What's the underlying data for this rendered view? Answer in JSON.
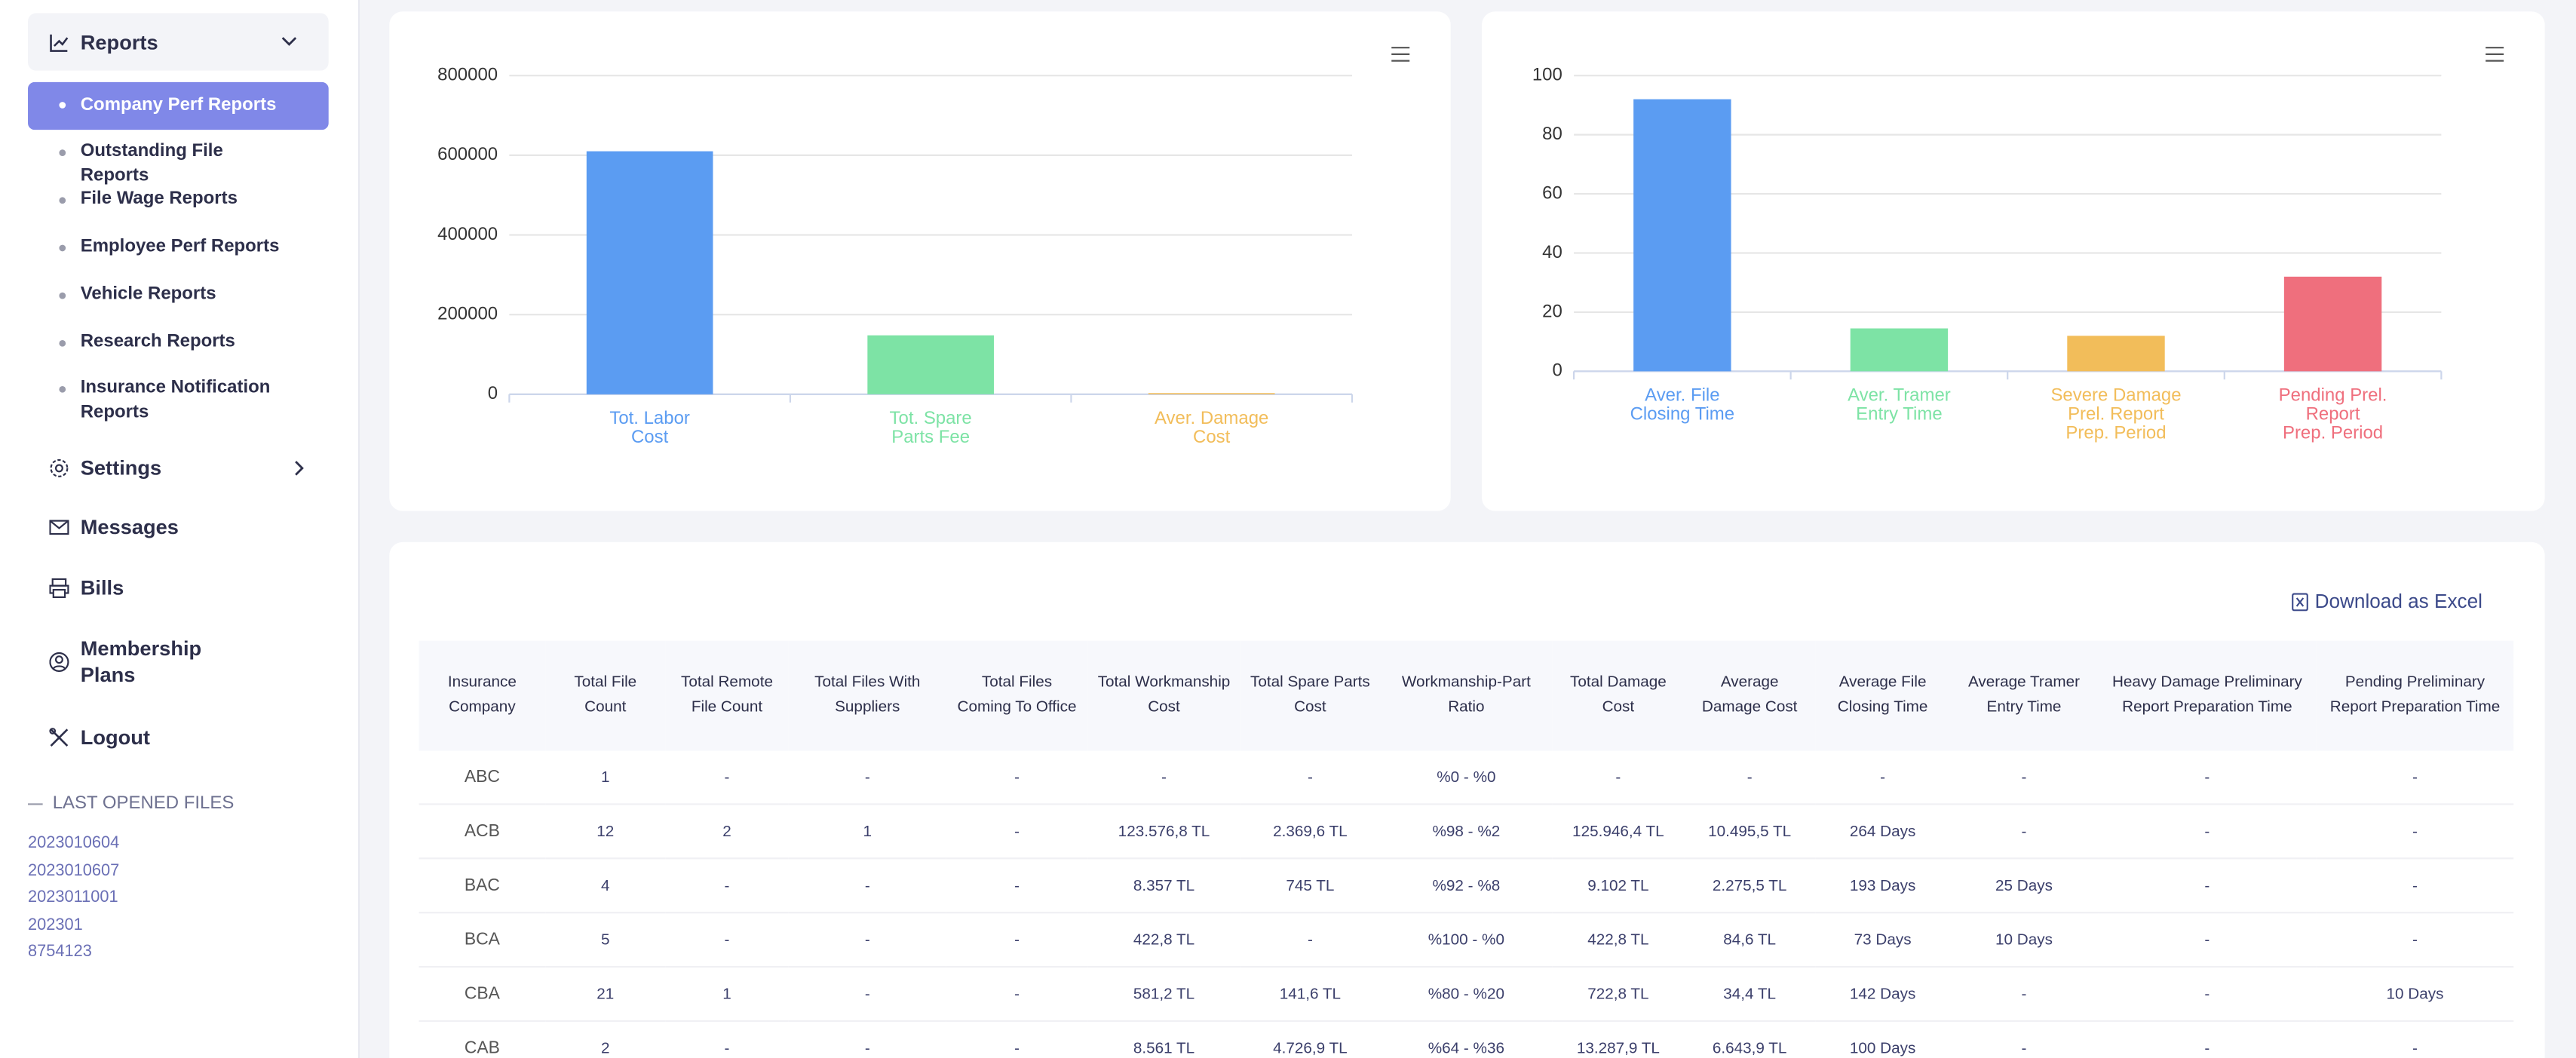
{
  "sidebar": {
    "menu": {
      "label": "Reports",
      "items": [
        "Company Perf Reports",
        "Outstanding File Reports",
        "File Wage Reports",
        "Employee Perf Reports",
        "Vehicle Reports",
        "Research Reports",
        "Insurance Notification Reports"
      ]
    },
    "nav": [
      "Settings",
      "Messages",
      "Bills",
      "Membership Plans",
      "Logout"
    ],
    "last_opened": {
      "title": "LAST OPENED FILES",
      "files": [
        "2023010604",
        "2023010607",
        "2023011001",
        "202301",
        "8754123"
      ]
    }
  },
  "charts": [
    {
      "type": "bar",
      "categories": [
        [
          "Tot. Labor",
          "Cost"
        ],
        [
          "Tot. Spare",
          "Parts Fee"
        ],
        [
          "Aver. Damage",
          "Cost"
        ]
      ],
      "values": [
        610000,
        148000,
        3000
      ],
      "colors": [
        "#5b9cf2",
        "#7de3a5",
        "#f2bd5a"
      ],
      "ylim": [
        0,
        800000
      ],
      "yticks": [
        0,
        200000,
        400000,
        600000,
        800000
      ],
      "grid": true
    },
    {
      "type": "bar",
      "categories": [
        [
          "Aver. File",
          "Closing Time"
        ],
        [
          "Aver. Tramer",
          "Entry Time"
        ],
        [
          "Severe Damage",
          "Prel. Report",
          "Prep. Period"
        ],
        [
          "Pending Prel.",
          "Report",
          "Prep. Period"
        ]
      ],
      "values": [
        92,
        14.5,
        12,
        32
      ],
      "colors": [
        "#5b9cf2",
        "#7de3a5",
        "#f2bd5a",
        "#ef6f7d"
      ],
      "ylim": [
        0,
        100
      ],
      "yticks": [
        0,
        20,
        40,
        60,
        80,
        100
      ],
      "grid": true
    }
  ],
  "table": {
    "action": "Download as Excel",
    "headers": [
      "Insurance Company",
      "Total File Count",
      "Total Remote File Count",
      "Total Files With Suppliers",
      "Total Files Coming To Office",
      "Total Workmanship Cost",
      "Total Spare Parts Cost",
      "Workmanship-Part Ratio",
      "Total Damage Cost",
      "Average Damage Cost",
      "Average File Closing Time",
      "Average Tramer Entry Time",
      "Heavy Damage Preliminary Report Preparation Time",
      "Pending Preliminary Report Preparation Time"
    ],
    "rows": [
      [
        "ABC",
        "1",
        "-",
        "-",
        "-",
        "-",
        "-",
        "%0 - %0",
        "-",
        "-",
        "-",
        "-",
        "-",
        "-"
      ],
      [
        "ACB",
        "12",
        "2",
        "1",
        "-",
        "123.576,8 TL",
        "2.369,6 TL",
        "%98 - %2",
        "125.946,4 TL",
        "10.495,5 TL",
        "264 Days",
        "-",
        "-",
        "-"
      ],
      [
        "BAC",
        "4",
        "-",
        "-",
        "-",
        "8.357 TL",
        "745 TL",
        "%92 - %8",
        "9.102 TL",
        "2.275,5 TL",
        "193 Days",
        "25 Days",
        "-",
        "-"
      ],
      [
        "BCA",
        "5",
        "-",
        "-",
        "-",
        "422,8 TL",
        "-",
        "%100 - %0",
        "422,8 TL",
        "84,6 TL",
        "73 Days",
        "10 Days",
        "-",
        "-"
      ],
      [
        "CBA",
        "21",
        "1",
        "-",
        "-",
        "581,2 TL",
        "141,6 TL",
        "%80 - %20",
        "722,8 TL",
        "34,4 TL",
        "142 Days",
        "-",
        "-",
        "10 Days"
      ],
      [
        "CAB",
        "2",
        "-",
        "-",
        "-",
        "8.561 TL",
        "4.726,9 TL",
        "%64 - %36",
        "13.287,9 TL",
        "6.643,9 TL",
        "100 Days",
        "-",
        "-",
        "-"
      ]
    ]
  }
}
